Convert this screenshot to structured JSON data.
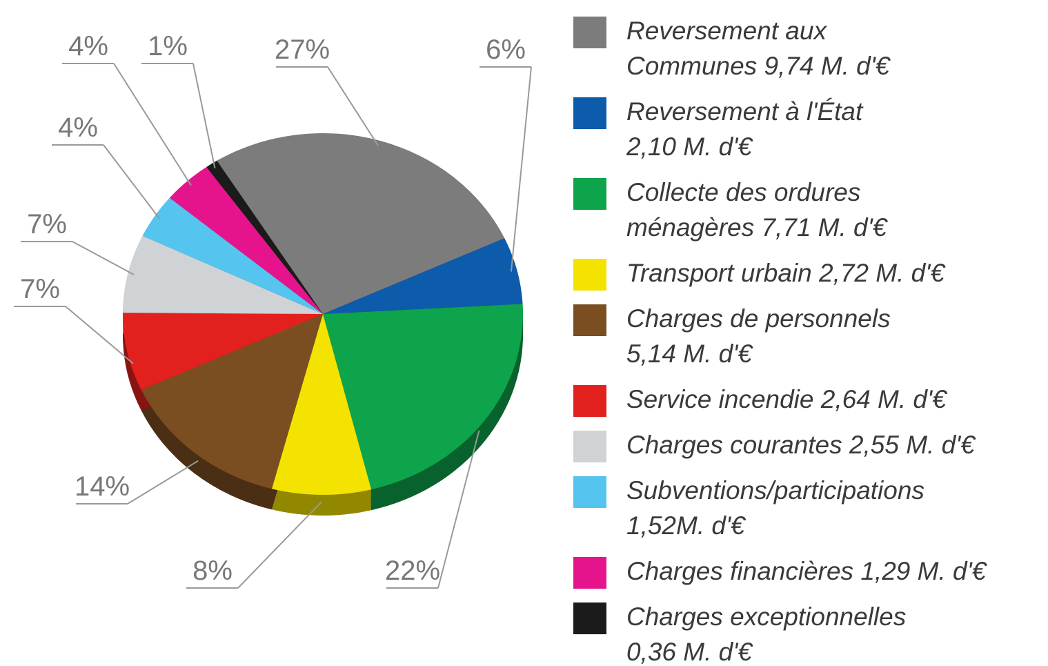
{
  "chart_data": {
    "type": "pie",
    "categories": [
      [
        "Reversement aux",
        "Communes 9,74 M. d'€"
      ],
      [
        "Reversement à l'État",
        "2,10 M. d'€"
      ],
      [
        "Collecte des ordures",
        "ménagères 7,71 M. d'€"
      ],
      [
        "Transport urbain 2,72 M. d'€"
      ],
      [
        "Charges de personnels",
        "5,14 M. d'€"
      ],
      [
        "Service incendie 2,64 M. d'€"
      ],
      [
        "Charges courantes 2,55 M. d'€"
      ],
      [
        "Subventions/participations",
        "1,52M. d'€"
      ],
      [
        "Charges financières 1,29 M. d'€"
      ],
      [
        "Charges exceptionnelles",
        "0,36 M. d'€"
      ]
    ],
    "values": [
      27,
      6,
      22,
      8,
      14,
      7,
      7,
      4,
      4,
      1
    ],
    "value_labels": [
      "27%",
      "6%",
      "22%",
      "8%",
      "14%",
      "7%",
      "7%",
      "4%",
      "4%",
      "1%"
    ],
    "colors": [
      "#7c7c7c",
      "#0d5bab",
      "#0ea44b",
      "#f4e300",
      "#7b4e22",
      "#e2211f",
      "#cfd3d5",
      "#55c4ee",
      "#e5148c",
      "#1b1b1b"
    ]
  }
}
